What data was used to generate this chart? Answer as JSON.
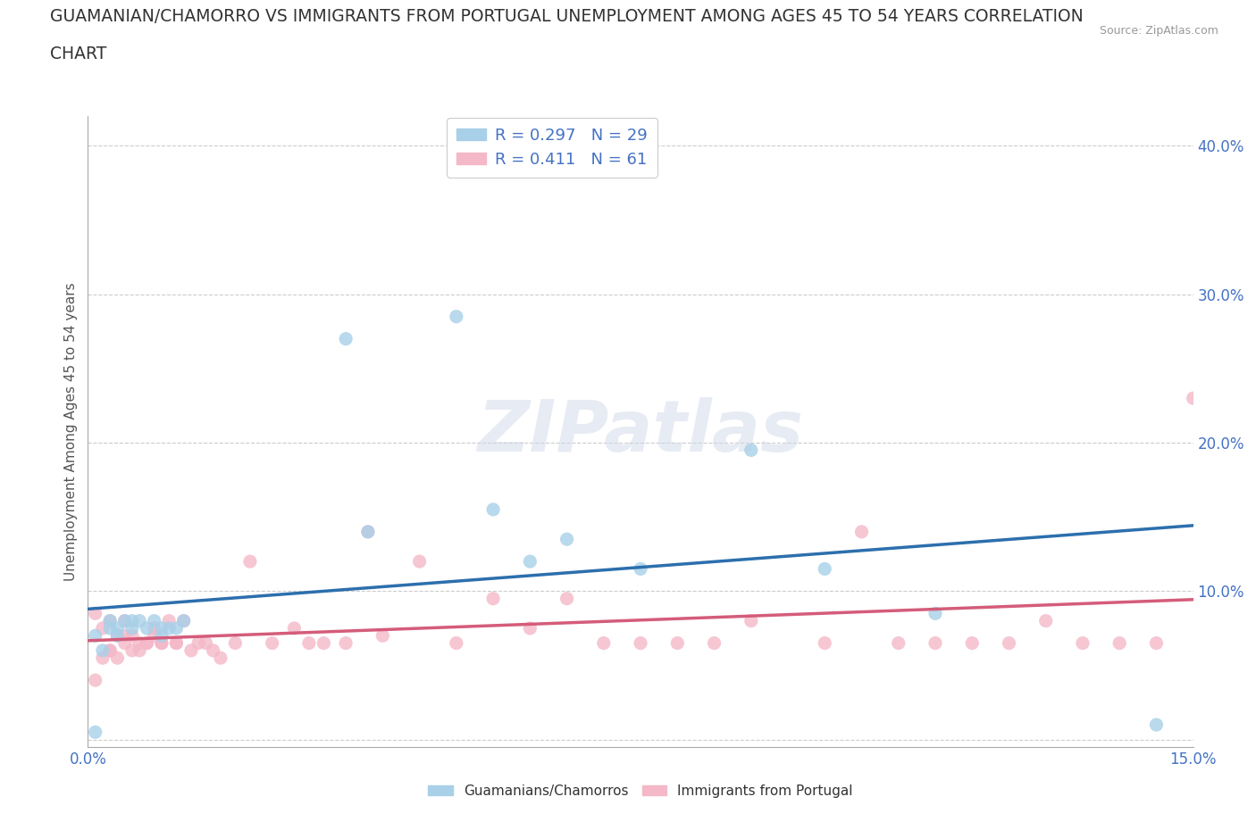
{
  "title_line1": "GUAMANIAN/CHAMORRO VS IMMIGRANTS FROM PORTUGAL UNEMPLOYMENT AMONG AGES 45 TO 54 YEARS CORRELATION",
  "title_line2": "CHART",
  "source": "Source: ZipAtlas.com",
  "ylabel": "Unemployment Among Ages 45 to 54 years",
  "xlim": [
    0.0,
    0.15
  ],
  "ylim": [
    -0.005,
    0.42
  ],
  "xticks": [
    0.0,
    0.03,
    0.06,
    0.09,
    0.12,
    0.15
  ],
  "yticks": [
    0.0,
    0.1,
    0.2,
    0.3,
    0.4
  ],
  "blue_color": "#a8d0e8",
  "pink_color": "#f4b8c8",
  "blue_line_color": "#2c6fad",
  "pink_line_color": "#d45c7a",
  "R_blue": 0.297,
  "N_blue": 29,
  "R_pink": 0.411,
  "N_pink": 61,
  "legend1": "Guamanians/Chamorros",
  "legend2": "Immigrants from Portugal",
  "watermark": "ZIPatlas",
  "tick_color": "#4472c4",
  "title_fontsize": 13.5,
  "blue_x": [
    0.001,
    0.001,
    0.002,
    0.003,
    0.003,
    0.004,
    0.004,
    0.005,
    0.006,
    0.006,
    0.007,
    0.008,
    0.009,
    0.01,
    0.01,
    0.011,
    0.012,
    0.013,
    0.035,
    0.038,
    0.05,
    0.055,
    0.06,
    0.065,
    0.075,
    0.09,
    0.1,
    0.115,
    0.145
  ],
  "blue_y": [
    0.005,
    0.07,
    0.06,
    0.075,
    0.08,
    0.07,
    0.075,
    0.08,
    0.075,
    0.08,
    0.08,
    0.075,
    0.08,
    0.075,
    0.07,
    0.075,
    0.075,
    0.08,
    0.27,
    0.14,
    0.285,
    0.155,
    0.12,
    0.135,
    0.115,
    0.195,
    0.115,
    0.085,
    0.01
  ],
  "pink_x": [
    0.001,
    0.002,
    0.003,
    0.003,
    0.004,
    0.005,
    0.005,
    0.006,
    0.007,
    0.008,
    0.009,
    0.01,
    0.011,
    0.012,
    0.013,
    0.014,
    0.015,
    0.016,
    0.017,
    0.018,
    0.02,
    0.022,
    0.025,
    0.028,
    0.03,
    0.032,
    0.035,
    0.038,
    0.04,
    0.045,
    0.05,
    0.055,
    0.06,
    0.065,
    0.07,
    0.075,
    0.08,
    0.085,
    0.09,
    0.1,
    0.105,
    0.11,
    0.115,
    0.12,
    0.125,
    0.13,
    0.135,
    0.14,
    0.145,
    0.15,
    0.001,
    0.002,
    0.003,
    0.004,
    0.005,
    0.006,
    0.007,
    0.008,
    0.009,
    0.01,
    0.012
  ],
  "pink_y": [
    0.085,
    0.075,
    0.08,
    0.06,
    0.07,
    0.065,
    0.08,
    0.07,
    0.065,
    0.065,
    0.075,
    0.065,
    0.08,
    0.065,
    0.08,
    0.06,
    0.065,
    0.065,
    0.06,
    0.055,
    0.065,
    0.12,
    0.065,
    0.075,
    0.065,
    0.065,
    0.065,
    0.14,
    0.07,
    0.12,
    0.065,
    0.095,
    0.075,
    0.095,
    0.065,
    0.065,
    0.065,
    0.065,
    0.08,
    0.065,
    0.14,
    0.065,
    0.065,
    0.065,
    0.065,
    0.08,
    0.065,
    0.065,
    0.065,
    0.23,
    0.04,
    0.055,
    0.06,
    0.055,
    0.07,
    0.06,
    0.06,
    0.065,
    0.07,
    0.065,
    0.065
  ]
}
